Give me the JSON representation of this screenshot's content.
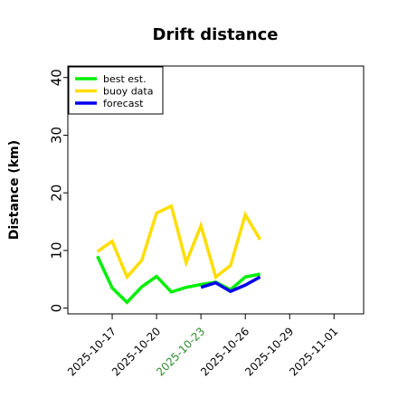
{
  "chart_data": {
    "type": "line",
    "title": "Drift distance",
    "ylabel": "Distance (km)",
    "xlabel": "",
    "ylim": [
      -1,
      42
    ],
    "yticks": [
      0,
      10,
      20,
      30,
      40
    ],
    "xlim": [
      "2025-10-14",
      "2025-11-03"
    ],
    "xticks": [
      "2025-10-17",
      "2025-10-20",
      "2025-10-23",
      "2025-10-26",
      "2025-10-29",
      "2025-11-01"
    ],
    "xtick_colors": [
      "#000000",
      "#000000",
      "#2e8b2e",
      "#000000",
      "#000000",
      "#000000"
    ],
    "legend_position": "top-left",
    "grid": false,
    "series": [
      {
        "name": "best est.",
        "color": "#00ee00",
        "x": [
          "2025-10-16",
          "2025-10-17",
          "2025-10-18",
          "2025-10-19",
          "2025-10-20",
          "2025-10-21",
          "2025-10-22",
          "2025-10-23",
          "2025-10-24",
          "2025-10-25",
          "2025-10-26",
          "2025-10-27"
        ],
        "y": [
          9.0,
          3.5,
          1.0,
          3.7,
          5.5,
          2.8,
          3.6,
          4.1,
          4.5,
          3.2,
          5.4,
          5.9
        ]
      },
      {
        "name": "buoy data",
        "color": "#ffdd00",
        "x": [
          "2025-10-16",
          "2025-10-17",
          "2025-10-18",
          "2025-10-19",
          "2025-10-20",
          "2025-10-21",
          "2025-10-22",
          "2025-10-23",
          "2025-10-24",
          "2025-10-25",
          "2025-10-26",
          "2025-10-27"
        ],
        "y": [
          9.8,
          11.6,
          5.4,
          8.3,
          16.5,
          17.7,
          7.9,
          14.3,
          5.4,
          7.4,
          16.2,
          11.9
        ]
      },
      {
        "name": "forecast",
        "color": "#0000ee",
        "x": [
          "2025-10-23",
          "2025-10-24",
          "2025-10-25",
          "2025-10-26",
          "2025-10-27"
        ],
        "y": [
          3.6,
          4.4,
          2.9,
          4.0,
          5.4
        ]
      }
    ]
  }
}
